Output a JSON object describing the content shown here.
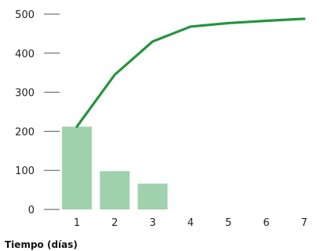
{
  "chart_data": {
    "type": "bar",
    "xlabel": "Tiempo (días)",
    "ylabel": "",
    "ylim": [
      0,
      500
    ],
    "yticks": [
      0,
      100,
      200,
      300,
      400,
      500
    ],
    "categories": [
      "1",
      "2",
      "3",
      "4",
      "5",
      "6",
      "7"
    ],
    "series": [
      {
        "kind": "bar",
        "values": [
          212,
          98,
          66,
          null,
          null,
          null,
          null
        ]
      },
      {
        "kind": "line",
        "values": [
          212,
          345,
          430,
          468,
          477,
          483,
          488
        ]
      }
    ],
    "grid": false,
    "legend": "none"
  },
  "colors": {
    "bar": "#9fd2ac",
    "line": "#25943f",
    "text": "#1f1f1f",
    "tick_mark": "#555555"
  }
}
